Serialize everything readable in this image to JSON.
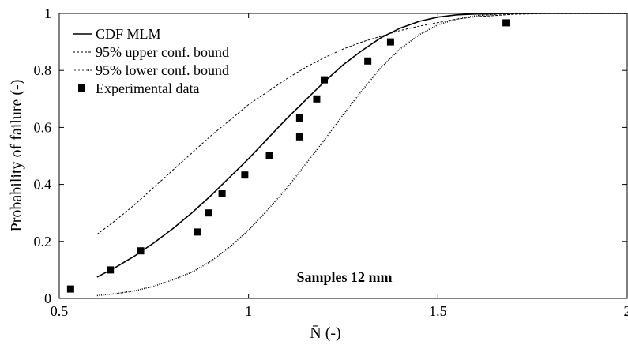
{
  "chart_data": {
    "type": "line",
    "title": "",
    "xlabel": "N̄ (-)",
    "ylabel": "Probability of failure (-)",
    "xlim": [
      0.5,
      2
    ],
    "ylim": [
      0,
      1
    ],
    "x_ticks": [
      0.5,
      1,
      1.5,
      2
    ],
    "x_tick_labels": [
      "0.5",
      "1",
      "1.5",
      "2"
    ],
    "y_ticks": [
      0,
      0.2,
      0.4,
      0.6,
      0.8,
      1
    ],
    "y_tick_labels": [
      "0",
      "0.2",
      "0.4",
      "0.6",
      "0.8",
      "1"
    ],
    "grid": false,
    "legend_position": "top-left",
    "annotation": "Samples 12 mm",
    "series": [
      {
        "name": "CDF MLM",
        "kind": "line",
        "style": "solid",
        "x": [
          0.6,
          0.65,
          0.7,
          0.75,
          0.8,
          0.85,
          0.9,
          0.95,
          1.0,
          1.05,
          1.1,
          1.15,
          1.2,
          1.25,
          1.3,
          1.35,
          1.4,
          1.45,
          1.5,
          1.55,
          1.6,
          1.65,
          1.7,
          1.75,
          1.8,
          1.9,
          2.0
        ],
        "y": [
          0.075,
          0.11,
          0.15,
          0.195,
          0.245,
          0.3,
          0.36,
          0.425,
          0.49,
          0.56,
          0.63,
          0.695,
          0.76,
          0.82,
          0.87,
          0.915,
          0.948,
          0.972,
          0.987,
          0.995,
          0.998,
          0.999,
          1.0,
          1.0,
          1.0,
          1.0,
          1.0
        ]
      },
      {
        "name": "95% upper conf. bound",
        "kind": "line",
        "style": "dashed",
        "x": [
          0.6,
          0.65,
          0.7,
          0.75,
          0.8,
          0.85,
          0.9,
          0.95,
          1.0,
          1.05,
          1.1,
          1.15,
          1.2,
          1.25,
          1.3,
          1.35,
          1.4,
          1.45,
          1.5,
          1.55,
          1.6,
          1.7,
          1.8,
          1.9,
          2.0
        ],
        "y": [
          0.225,
          0.275,
          0.33,
          0.39,
          0.45,
          0.51,
          0.57,
          0.625,
          0.68,
          0.725,
          0.77,
          0.81,
          0.845,
          0.875,
          0.9,
          0.92,
          0.94,
          0.955,
          0.968,
          0.98,
          0.988,
          0.997,
          1.0,
          1.0,
          1.0
        ]
      },
      {
        "name": "95% lower conf. bound",
        "kind": "line",
        "style": "dotted",
        "x": [
          0.6,
          0.65,
          0.7,
          0.75,
          0.8,
          0.85,
          0.9,
          0.95,
          1.0,
          1.05,
          1.1,
          1.15,
          1.2,
          1.25,
          1.3,
          1.35,
          1.4,
          1.45,
          1.5,
          1.55,
          1.6,
          1.65,
          1.7,
          1.75,
          1.8,
          1.9,
          2.0
        ],
        "y": [
          0.01,
          0.017,
          0.027,
          0.043,
          0.065,
          0.092,
          0.13,
          0.18,
          0.24,
          0.31,
          0.385,
          0.47,
          0.555,
          0.645,
          0.73,
          0.81,
          0.875,
          0.925,
          0.96,
          0.98,
          0.992,
          0.997,
          0.999,
          1.0,
          1.0,
          1.0,
          1.0
        ]
      },
      {
        "name": "Experimental data",
        "kind": "scatter",
        "marker": "square",
        "x": [
          0.53,
          0.635,
          0.715,
          0.865,
          0.895,
          0.93,
          0.99,
          1.055,
          1.135,
          1.135,
          1.18,
          1.2,
          1.315,
          1.375,
          1.68
        ],
        "y": [
          0.033,
          0.1,
          0.167,
          0.233,
          0.3,
          0.367,
          0.433,
          0.5,
          0.567,
          0.633,
          0.7,
          0.767,
          0.833,
          0.9,
          0.967
        ]
      }
    ]
  }
}
